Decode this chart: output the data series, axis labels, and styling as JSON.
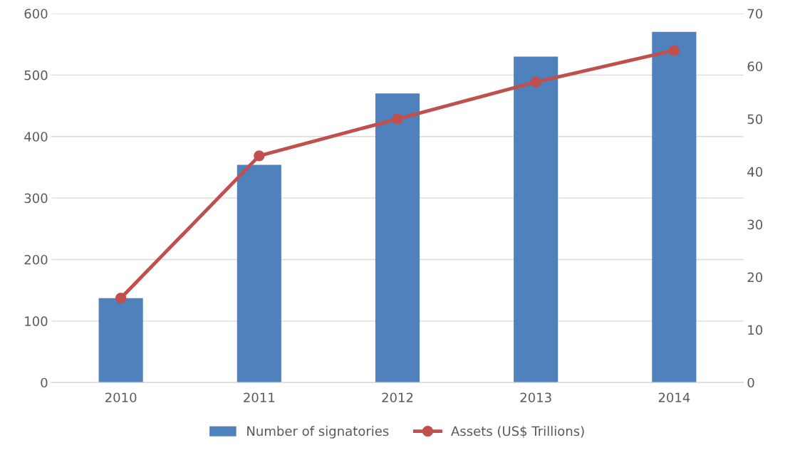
{
  "chart_data": {
    "type": "bar",
    "categories": [
      "2010",
      "2011",
      "2012",
      "2013",
      "2014"
    ],
    "series": [
      {
        "name": "Number of signatories",
        "color": "#4f81bd",
        "values": [
          137,
          354,
          470,
          530,
          570
        ]
      },
      {
        "name": "Assets (US$ Trillions)",
        "type": "line",
        "axis": "y2",
        "color": "#c0504d",
        "values": [
          16,
          43,
          50,
          57,
          63
        ]
      }
    ],
    "ylim": [
      0,
      600
    ],
    "yticks": [
      0,
      100,
      200,
      300,
      400,
      500,
      600
    ],
    "y2lim": [
      0,
      70
    ],
    "y2ticks": [
      0,
      10,
      20,
      30,
      40,
      50,
      60,
      70
    ],
    "grid": "y",
    "legend": "bottom",
    "marker": "circle",
    "line_style": "solid"
  }
}
